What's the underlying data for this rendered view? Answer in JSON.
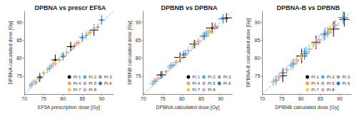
{
  "chart_data": [
    {
      "type": "scatter",
      "title": "DPBNA vs prescr EF5A",
      "x_label": "EF5A prescription dose [Gy]",
      "y_label": "DPBNA calculated dose [Gy]",
      "xlim": [
        70,
        93
      ],
      "ylim": [
        70,
        93
      ],
      "xticks": [
        70,
        75,
        80,
        85,
        90
      ],
      "yticks": [
        75,
        80,
        85,
        90
      ],
      "grid": false,
      "legend": "lower right",
      "marker": "cross",
      "series": [
        {
          "name": "Pt 1",
          "color": "#000000",
          "x": [
            74,
            78,
            82,
            88
          ],
          "y": [
            74.6,
            79.5,
            83.2,
            87.8
          ],
          "xerr": [
            0.8,
            1,
            1,
            1.2
          ],
          "yerr": [
            1.2,
            1.5,
            1.3,
            1.6
          ]
        },
        {
          "name": "Pt 2",
          "color": "#4ab3e6",
          "x": [
            72,
            76.5,
            80,
            86
          ],
          "y": [
            72.8,
            77.2,
            80.9,
            86.3
          ],
          "xerr": [
            0.5,
            0.6,
            0.7,
            0.6
          ],
          "yerr": [
            0.8,
            1,
            0.9,
            1.1
          ]
        },
        {
          "name": "Pt 3",
          "color": "#a0a0a0",
          "x": [
            73,
            77,
            83,
            89
          ],
          "y": [
            73.2,
            77.8,
            83.5,
            88.6
          ],
          "xerr": [
            0.4,
            0.5,
            0.5,
            0.6
          ],
          "yerr": [
            0.7,
            0.8,
            0.9,
            1
          ]
        },
        {
          "name": "Pt 4",
          "color": "#f2a33a",
          "x": [
            75,
            79,
            84,
            87
          ],
          "y": [
            75.9,
            79.6,
            84.3,
            87.2
          ],
          "xerr": [
            0.5,
            0.5,
            0.6,
            0.6
          ],
          "yerr": [
            0.6,
            0.7,
            0.8,
            0.9
          ]
        },
        {
          "name": "Pt 5",
          "color": "#9db8d9",
          "x": [
            71.5,
            76,
            81,
            85
          ],
          "y": [
            72.4,
            76.8,
            81.6,
            85.4
          ],
          "xerr": [
            0.4,
            0.5,
            0.5,
            0.5
          ],
          "yerr": [
            0.9,
            0.8,
            1,
            1
          ]
        },
        {
          "name": "Pt 6",
          "color": "#2e75b6",
          "x": [
            74,
            80,
            85,
            90
          ],
          "y": [
            74.9,
            80.4,
            85.8,
            90.6
          ],
          "xerr": [
            0.6,
            0.7,
            0.8,
            0.9
          ],
          "yerr": [
            1,
            1.1,
            1.2,
            1.3
          ]
        },
        {
          "name": "Pt 7",
          "color": "#f7c948",
          "x": [
            73.5,
            78,
            82.5,
            86.5
          ],
          "y": [
            74.1,
            78.6,
            82.8,
            86.9
          ],
          "xerr": [
            0.4,
            0.4,
            0.5,
            0.5
          ],
          "yerr": [
            0.6,
            0.6,
            0.7,
            0.7
          ]
        },
        {
          "name": "Pt 8",
          "color": "#e8a1c8",
          "x": [
            72.5,
            77.5,
            83.5,
            88
          ],
          "y": [
            73.6,
            78.4,
            84.1,
            88.4
          ],
          "xerr": [
            0.5,
            0.5,
            0.6,
            0.6
          ],
          "yerr": [
            0.7,
            0.8,
            0.8,
            0.9
          ]
        }
      ]
    },
    {
      "type": "scatter",
      "title": "DPBNB vs DPBNA",
      "x_label": "DPBNA calculated dose [Gy]",
      "y_label": "DPBNB calculated dose [Gy]",
      "xlim": [
        70,
        93
      ],
      "ylim": [
        70,
        93
      ],
      "xticks": [
        70,
        75,
        80,
        85,
        90
      ],
      "yticks": [
        75,
        80,
        85,
        90
      ],
      "grid": false,
      "legend": "lower right",
      "marker": "cross",
      "series": [
        {
          "name": "Pt 1",
          "color": "#000000",
          "x": [
            74.6,
            79.5,
            83.2,
            87.8,
            91.5
          ],
          "y": [
            75.3,
            80.2,
            83.9,
            88.4,
            91.2
          ],
          "xerr": [
            1.2,
            1.5,
            1.3,
            1.6,
            1.4
          ],
          "yerr": [
            1.1,
            1.4,
            1.2,
            1.5,
            1.3
          ]
        },
        {
          "name": "Pt 2",
          "color": "#4ab3e6",
          "x": [
            72.8,
            77.2,
            80.9,
            86.3
          ],
          "y": [
            73.5,
            77.9,
            81.3,
            86.9
          ],
          "xerr": [
            0.8,
            1,
            0.9,
            1.1
          ],
          "yerr": [
            0.9,
            1,
            1,
            1.2
          ]
        },
        {
          "name": "Pt 3",
          "color": "#a0a0a0",
          "x": [
            73.2,
            77.8,
            83.5,
            88.6
          ],
          "y": [
            73.6,
            78.1,
            83.9,
            88.9
          ],
          "xerr": [
            0.7,
            0.8,
            0.9,
            1
          ],
          "yerr": [
            0.7,
            0.8,
            0.9,
            1
          ]
        },
        {
          "name": "Pt 4",
          "color": "#f2a33a",
          "x": [
            75.9,
            79.6,
            84.3,
            87.2
          ],
          "y": [
            76.3,
            80.1,
            84.6,
            87.5
          ],
          "xerr": [
            0.6,
            0.7,
            0.8,
            0.9
          ],
          "yerr": [
            0.6,
            0.7,
            0.8,
            0.9
          ]
        },
        {
          "name": "Pt 5",
          "color": "#9db8d9",
          "x": [
            72.4,
            76.8,
            81.6,
            85.4
          ],
          "y": [
            72.9,
            77.4,
            82.1,
            85.9
          ],
          "xerr": [
            0.9,
            0.8,
            1,
            1
          ],
          "yerr": [
            0.9,
            0.9,
            1,
            1.1
          ]
        },
        {
          "name": "Pt 6",
          "color": "#2e75b6",
          "x": [
            74.9,
            80.4,
            85.8,
            90.6
          ],
          "y": [
            75.4,
            80.9,
            86.2,
            90.9
          ],
          "xerr": [
            1,
            1.1,
            1.2,
            1.3
          ],
          "yerr": [
            1,
            1.1,
            1.2,
            1.3
          ]
        },
        {
          "name": "Pt 7",
          "color": "#f7c948",
          "x": [
            74.1,
            78.6,
            82.8,
            86.9
          ],
          "y": [
            74.5,
            79.1,
            83.2,
            87.3
          ],
          "xerr": [
            0.6,
            0.6,
            0.7,
            0.7
          ],
          "yerr": [
            0.6,
            0.7,
            0.7,
            0.8
          ]
        },
        {
          "name": "Pt 8",
          "color": "#e8a1c8",
          "x": [
            73.6,
            78.4,
            84.1,
            88.4
          ],
          "y": [
            74.2,
            78.8,
            84.6,
            88.7
          ],
          "xerr": [
            0.7,
            0.8,
            0.8,
            0.9
          ],
          "yerr": [
            0.7,
            0.8,
            0.9,
            0.9
          ]
        }
      ]
    },
    {
      "type": "scatter",
      "title": "DPBNA-B vs DPBNB",
      "x_label": "DPBNB calculated dose [Gy]",
      "y_label": "DPBNA-B calculated dose [Gy]",
      "xlim": [
        70,
        93
      ],
      "ylim": [
        70,
        93
      ],
      "xticks": [
        70,
        75,
        80,
        85,
        90
      ],
      "yticks": [
        75,
        80,
        85,
        90
      ],
      "grid": false,
      "legend": "lower right",
      "marker": "cross",
      "series": [
        {
          "name": "Pt 1",
          "color": "#000000",
          "x": [
            75.3,
            80.2,
            83.9,
            88.4,
            91.2
          ],
          "y": [
            75.1,
            80.6,
            84.4,
            88.1,
            90.8
          ],
          "xerr": [
            1.1,
            1.4,
            1.2,
            1.5,
            1.3
          ],
          "yerr": [
            1.8,
            2,
            1.9,
            2.1,
            2
          ]
        },
        {
          "name": "Pt 2",
          "color": "#4ab3e6",
          "x": [
            73.5,
            77.9,
            81.3,
            86.9
          ],
          "y": [
            73.9,
            78.3,
            81.8,
            87.2
          ],
          "xerr": [
            0.9,
            1,
            1,
            1.2
          ],
          "yerr": [
            1.4,
            1.5,
            1.5,
            1.6
          ]
        },
        {
          "name": "Pt 3",
          "color": "#a0a0a0",
          "x": [
            73.6,
            78.1,
            83.9,
            88.9
          ],
          "y": [
            73.8,
            78.6,
            84.2,
            89.1
          ],
          "xerr": [
            0.7,
            0.8,
            0.9,
            1
          ],
          "yerr": [
            1.2,
            1.3,
            1.3,
            1.4
          ]
        },
        {
          "name": "Pt 4",
          "color": "#f2a33a",
          "x": [
            76.3,
            80.1,
            84.6,
            87.5
          ],
          "y": [
            76.8,
            80.5,
            85.1,
            87.9
          ],
          "xerr": [
            0.6,
            0.7,
            0.8,
            0.9
          ],
          "yerr": [
            1,
            1.1,
            1.2,
            1.3
          ]
        },
        {
          "name": "Pt 5",
          "color": "#9db8d9",
          "x": [
            72.9,
            77.4,
            82.1,
            85.9
          ],
          "y": [
            73.4,
            77.9,
            82.5,
            86.3
          ],
          "xerr": [
            0.9,
            0.9,
            1,
            1.1
          ],
          "yerr": [
            1.3,
            1.3,
            1.4,
            1.5
          ]
        },
        {
          "name": "Pt 6",
          "color": "#2e75b6",
          "x": [
            75.4,
            80.9,
            86.2,
            90.9
          ],
          "y": [
            75.9,
            81.2,
            86.7,
            91.3
          ],
          "xerr": [
            1,
            1.1,
            1.2,
            1.3
          ],
          "yerr": [
            1.5,
            1.6,
            1.7,
            1.8
          ]
        },
        {
          "name": "Pt 7",
          "color": "#f7c948",
          "x": [
            74.5,
            79.1,
            83.2,
            87.3
          ],
          "y": [
            74.9,
            79.4,
            83.7,
            87.6
          ],
          "xerr": [
            0.6,
            0.7,
            0.7,
            0.8
          ],
          "yerr": [
            1,
            1.1,
            1.1,
            1.2
          ]
        },
        {
          "name": "Pt 8",
          "color": "#e8a1c8",
          "x": [
            74.2,
            78.8,
            84.6,
            88.7
          ],
          "y": [
            74.7,
            79.3,
            85,
            89.2
          ],
          "xerr": [
            0.7,
            0.8,
            0.9,
            0.9
          ],
          "yerr": [
            1.2,
            1.2,
            1.3,
            1.4
          ]
        }
      ]
    }
  ]
}
